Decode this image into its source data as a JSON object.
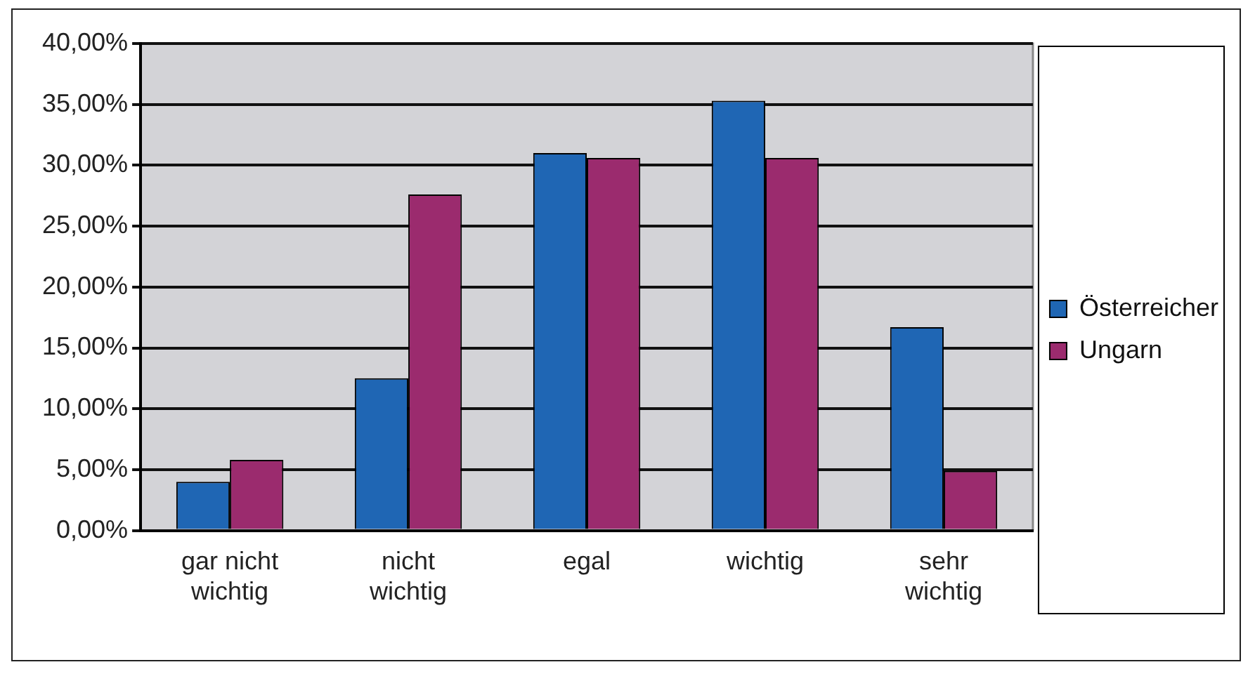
{
  "chart_data": {
    "type": "bar",
    "categories": [
      "gar nicht\nwichtig",
      "nicht\nwichtig",
      "egal",
      "wichtig",
      "sehr\nwichtig"
    ],
    "series": [
      {
        "name": "Österreicher",
        "color": "#1f66b4",
        "values": [
          4.0,
          12.5,
          31.0,
          35.3,
          16.7
        ]
      },
      {
        "name": "Ungarn",
        "color": "#9b2b6e",
        "values": [
          5.8,
          27.6,
          30.6,
          30.6,
          4.9
        ]
      }
    ],
    "ylim": [
      0,
      40
    ],
    "yticks": [
      {
        "value": 0,
        "label": "0,00%"
      },
      {
        "value": 5,
        "label": "5,00%"
      },
      {
        "value": 10,
        "label": "10,00%"
      },
      {
        "value": 15,
        "label": "15,00%"
      },
      {
        "value": 20,
        "label": "20,00%"
      },
      {
        "value": 25,
        "label": "25,00%"
      },
      {
        "value": 30,
        "label": "30,00%"
      },
      {
        "value": 35,
        "label": "35,00%"
      },
      {
        "value": 40,
        "label": "40,00%"
      }
    ],
    "grid": "y",
    "legend": "right"
  }
}
